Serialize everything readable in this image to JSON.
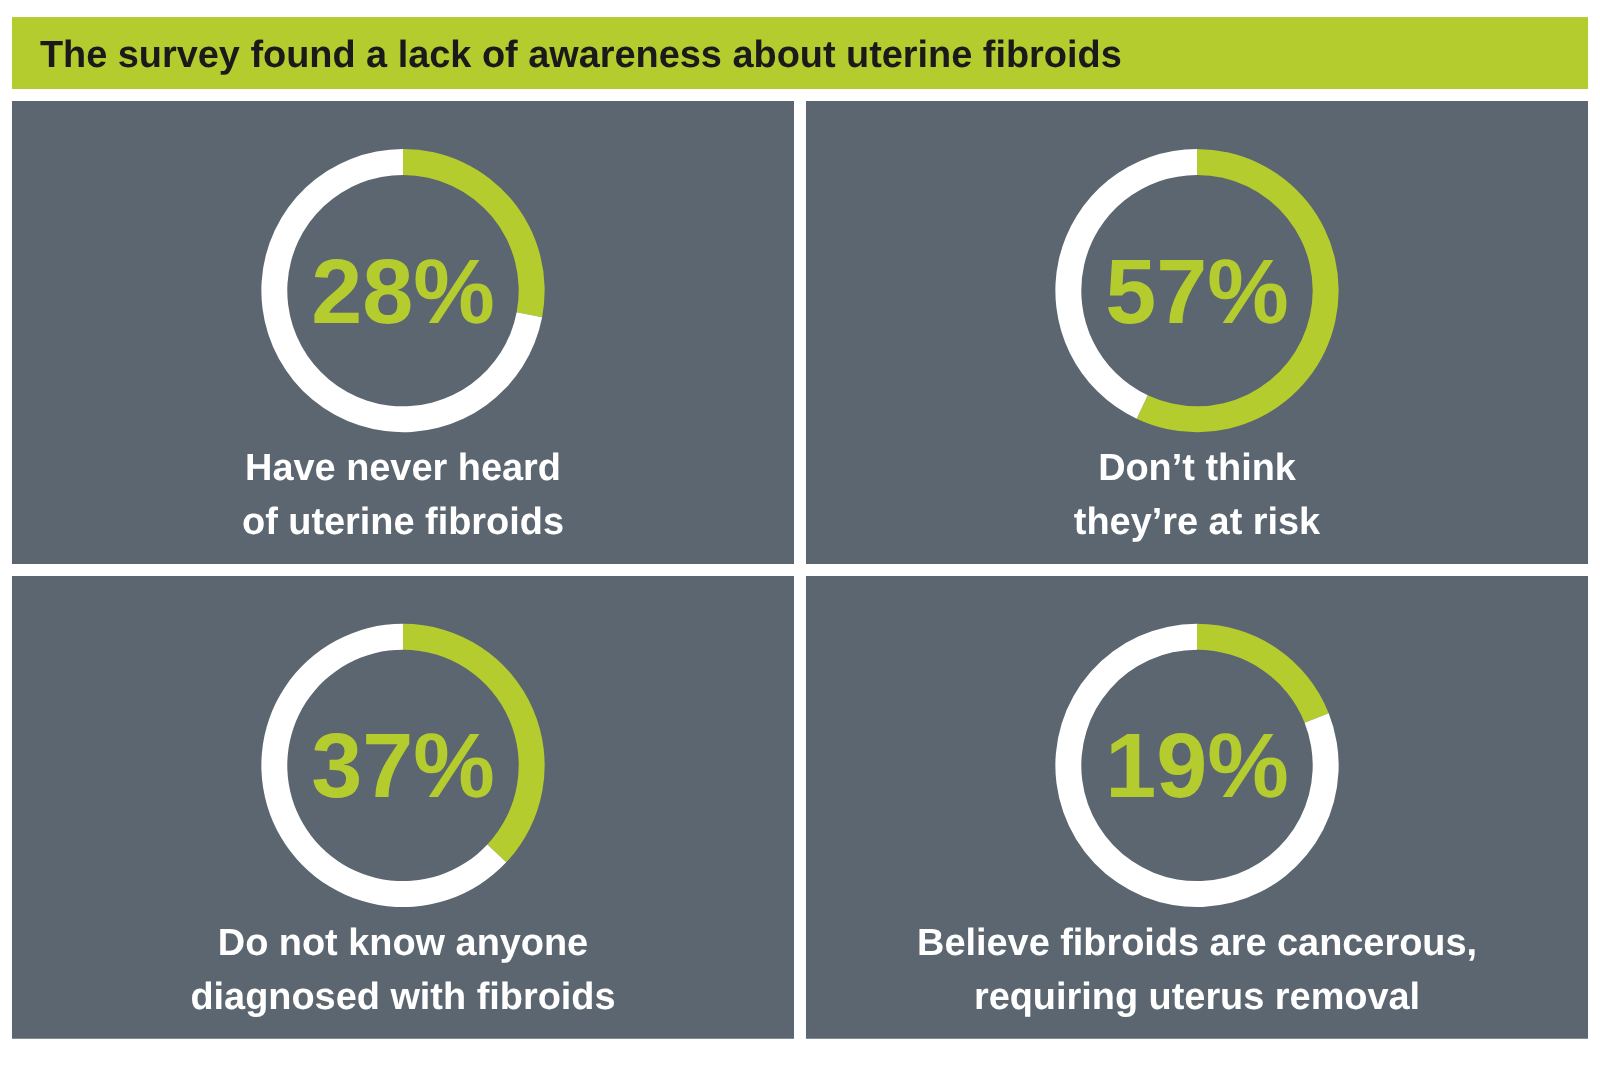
{
  "chart_data": [
    {
      "type": "donut",
      "title": "The survey found a lack of awareness about uterine fibroids",
      "categories": [
        null,
        null
      ],
      "values": [
        28,
        72
      ],
      "colors": [
        "#b5cc2e",
        "#ffffff"
      ],
      "value_labels": [
        "28%",
        null
      ],
      "annotations": [
        "Have never heard",
        "of uterine fibroids"
      ],
      "legend": false
    },
    {
      "type": "donut",
      "categories": [
        null,
        null
      ],
      "values": [
        57,
        43
      ],
      "colors": [
        "#b5cc2e",
        "#ffffff"
      ],
      "value_labels": [
        "57%",
        null
      ],
      "annotations": [
        "Don’t think",
        "they’re at risk"
      ],
      "legend": false
    },
    {
      "type": "donut",
      "categories": [
        null,
        null
      ],
      "values": [
        37,
        63
      ],
      "colors": [
        "#b5cc2e",
        "#ffffff"
      ],
      "value_labels": [
        "37%",
        null
      ],
      "annotations": [
        "Do not know anyone",
        "diagnosed with fibroids"
      ],
      "legend": false
    },
    {
      "type": "donut",
      "categories": [
        null,
        null
      ],
      "values": [
        19,
        81
      ],
      "colors": [
        "#b5cc2e",
        "#ffffff"
      ],
      "value_labels": [
        "19%",
        null
      ],
      "annotations": [
        "Believe fibroids are cancerous,",
        "requiring uterus removal"
      ],
      "legend": false
    }
  ]
}
